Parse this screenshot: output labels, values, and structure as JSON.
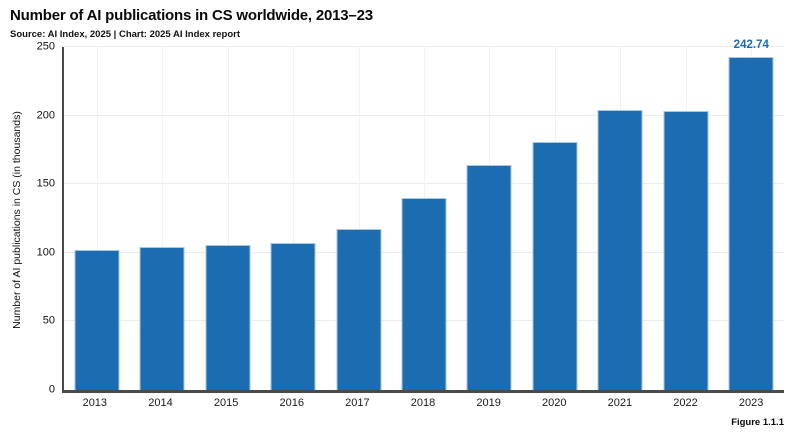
{
  "header": {
    "title": "Number of AI publications in CS worldwide, 2013–23",
    "subtitle": "Source: AI Index, 2025 | Chart: 2025 AI Index report"
  },
  "footer": {
    "figure_label": "Figure 1.1.1"
  },
  "colors": {
    "bar_fill": "#1c6cb2",
    "bar_stroke": "#a6c6e3",
    "value_label": "#1c6cb2",
    "axis": "#4a4a4a",
    "grid_h": "#ececec",
    "grid_v": "#f2f2f2"
  },
  "chart_data": {
    "type": "bar",
    "title": "Number of AI publications in CS worldwide, 2013–23",
    "subtitle": "Source: AI Index, 2025 | Chart: 2025 AI Index report",
    "categories": [
      "2013",
      "2014",
      "2015",
      "2016",
      "2017",
      "2018",
      "2019",
      "2020",
      "2021",
      "2022",
      "2023"
    ],
    "values": [
      102,
      104,
      105.5,
      107,
      117.5,
      140,
      164,
      181,
      204,
      203,
      242.74
    ],
    "xlabel": "",
    "ylabel": "Number of AI publications in CS (in thousands)",
    "ylim": [
      0,
      250
    ],
    "yticks": [
      0,
      50,
      100,
      150,
      200,
      250
    ],
    "grid": true,
    "legend_position": "none",
    "annotations": [
      {
        "category": "2023",
        "label": "242.74"
      }
    ]
  }
}
